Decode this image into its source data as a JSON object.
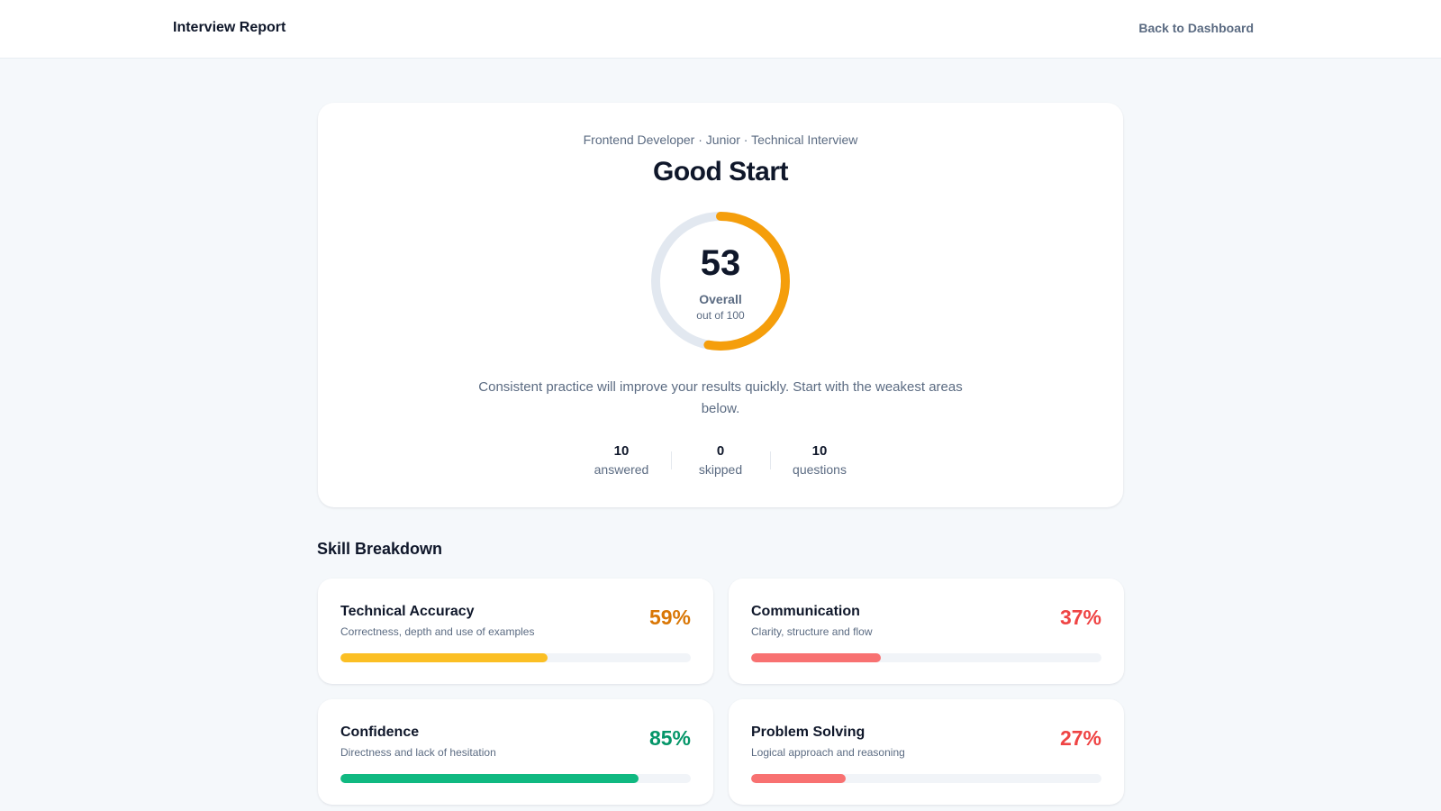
{
  "header": {
    "title": "Interview Report",
    "back_label": "Back to Dashboard"
  },
  "hero": {
    "meta": "Frontend Developer · Junior · Technical Interview",
    "verdict": "Good Start",
    "score": "53",
    "score_value": 53,
    "score_max": 100,
    "score_label": "Overall",
    "score_sub": "out of 100",
    "ring_color": "#f59e0b",
    "ring_track_color": "#e2e8f0",
    "message": "Consistent practice will improve your results quickly. Start with the weakest areas below.",
    "stats": [
      {
        "value": "10",
        "label": "answered"
      },
      {
        "value": "0",
        "label": "skipped"
      },
      {
        "value": "10",
        "label": "questions"
      }
    ]
  },
  "skills": {
    "title": "Skill Breakdown",
    "items": [
      {
        "name": "Technical Accuracy",
        "desc": "Correctness, depth and use of examples",
        "pct_label": "59%",
        "value": 59,
        "text_color": "#d97706",
        "bar_color": "#fbbf24"
      },
      {
        "name": "Communication",
        "desc": "Clarity, structure and flow",
        "pct_label": "37%",
        "value": 37,
        "text_color": "#ef4444",
        "bar_color": "#f87171"
      },
      {
        "name": "Confidence",
        "desc": "Directness and lack of hesitation",
        "pct_label": "85%",
        "value": 85,
        "text_color": "#059669",
        "bar_color": "#10b981"
      },
      {
        "name": "Problem Solving",
        "desc": "Logical approach and reasoning",
        "pct_label": "27%",
        "value": 27,
        "text_color": "#ef4444",
        "bar_color": "#f87171"
      }
    ]
  }
}
